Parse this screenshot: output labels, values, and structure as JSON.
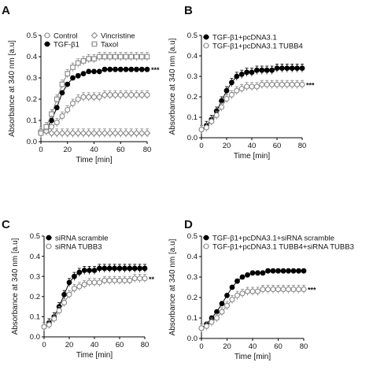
{
  "chart_data": [
    {
      "type": "scatter",
      "panel": "A",
      "xlabel": "Time [min]",
      "ylabel": "Absorbance at 340 nm [a.u]",
      "xlim": [
        0,
        80
      ],
      "ylim": [
        0,
        0.5
      ],
      "xticks": [
        "0",
        "20",
        "40",
        "60",
        "80"
      ],
      "yticks": [
        "0.0",
        "0.1",
        "0.2",
        "0.3",
        "0.4",
        "0.5"
      ],
      "legend_position": "top-left, two columns",
      "significance": "***",
      "x": [
        0,
        4,
        8,
        12,
        16,
        20,
        24,
        28,
        32,
        36,
        40,
        44,
        48,
        52,
        56,
        60,
        64,
        68,
        72,
        76,
        80
      ],
      "series": [
        {
          "name": "Control",
          "marker": "open-circle",
          "color": "#888888",
          "values": [
            0.04,
            0.05,
            0.07,
            0.09,
            0.12,
            0.15,
            0.18,
            0.2,
            0.21,
            0.21,
            0.21,
            0.21,
            0.22,
            0.22,
            0.22,
            0.22,
            0.22,
            0.22,
            0.22,
            0.22,
            0.22
          ],
          "error": 0.02
        },
        {
          "name": "TGF-β1",
          "marker": "filled-circle",
          "color": "#000000",
          "values": [
            0.04,
            0.06,
            0.1,
            0.16,
            0.23,
            0.27,
            0.3,
            0.31,
            0.32,
            0.33,
            0.33,
            0.33,
            0.34,
            0.34,
            0.34,
            0.34,
            0.34,
            0.34,
            0.34,
            0.34,
            0.34
          ],
          "error": 0.01
        },
        {
          "name": "Vincristine",
          "marker": "open-diamond",
          "color": "#888888",
          "values": [
            0.05,
            0.05,
            0.04,
            0.04,
            0.04,
            0.04,
            0.04,
            0.04,
            0.04,
            0.04,
            0.04,
            0.04,
            0.04,
            0.04,
            0.04,
            0.04,
            0.04,
            0.04,
            0.04,
            0.04,
            0.04
          ],
          "error": 0.02
        },
        {
          "name": "Taxol",
          "marker": "open-square",
          "color": "#888888",
          "values": [
            0.04,
            0.07,
            0.13,
            0.2,
            0.27,
            0.32,
            0.35,
            0.37,
            0.38,
            0.39,
            0.39,
            0.4,
            0.4,
            0.4,
            0.4,
            0.4,
            0.4,
            0.4,
            0.4,
            0.4,
            0.4
          ],
          "error": 0.02
        }
      ]
    },
    {
      "type": "scatter",
      "panel": "B",
      "xlabel": "Time [min]",
      "ylabel": "Absorbance at 340 nm [a.u]",
      "xlim": [
        0,
        80
      ],
      "ylim": [
        0,
        0.5
      ],
      "xticks": [
        "0",
        "20",
        "40",
        "60",
        "80"
      ],
      "yticks": [
        "0.0",
        "0.1",
        "0.2",
        "0.3",
        "0.4",
        "0.5"
      ],
      "legend_position": "top-left",
      "significance": "***",
      "x": [
        0,
        4,
        8,
        12,
        16,
        20,
        24,
        28,
        32,
        36,
        40,
        44,
        48,
        52,
        56,
        60,
        64,
        68,
        72,
        76,
        80
      ],
      "series": [
        {
          "name": "TGF-β1+pcDNA3.1",
          "marker": "filled-circle",
          "color": "#000000",
          "values": [
            0.04,
            0.06,
            0.09,
            0.13,
            0.18,
            0.23,
            0.27,
            0.3,
            0.31,
            0.32,
            0.32,
            0.33,
            0.33,
            0.33,
            0.33,
            0.34,
            0.34,
            0.34,
            0.34,
            0.34,
            0.34
          ],
          "error": 0.02
        },
        {
          "name": "TGF-β1+pcDNA3.1 TUBB4",
          "marker": "open-circle",
          "color": "#888888",
          "values": [
            0.04,
            0.05,
            0.08,
            0.11,
            0.15,
            0.19,
            0.21,
            0.23,
            0.24,
            0.25,
            0.25,
            0.25,
            0.26,
            0.26,
            0.26,
            0.26,
            0.26,
            0.26,
            0.26,
            0.26,
            0.26
          ],
          "error": 0.02
        }
      ]
    },
    {
      "type": "scatter",
      "panel": "C",
      "xlabel": "Time [min]",
      "ylabel": "Absorbance at 340 nm [a.u]",
      "xlim": [
        0,
        80
      ],
      "ylim": [
        0,
        0.5
      ],
      "xticks": [
        "0",
        "20",
        "40",
        "60",
        "80"
      ],
      "yticks": [
        "0.0",
        "0.1",
        "0.2",
        "0.3",
        "0.4",
        "0.5"
      ],
      "legend_position": "top-left",
      "significance": "**",
      "x": [
        0,
        4,
        8,
        12,
        16,
        20,
        24,
        28,
        32,
        36,
        40,
        44,
        48,
        52,
        56,
        60,
        64,
        68,
        72,
        76,
        80
      ],
      "series": [
        {
          "name": "siRNA scramble",
          "marker": "filled-circle",
          "color": "#000000",
          "values": [
            0.05,
            0.07,
            0.1,
            0.15,
            0.21,
            0.27,
            0.3,
            0.32,
            0.33,
            0.33,
            0.33,
            0.34,
            0.34,
            0.34,
            0.34,
            0.34,
            0.34,
            0.34,
            0.34,
            0.34,
            0.34
          ],
          "error": 0.02
        },
        {
          "name": "siRNA TUBB3",
          "marker": "open-circle",
          "color": "#888888",
          "values": [
            0.05,
            0.06,
            0.09,
            0.13,
            0.17,
            0.21,
            0.24,
            0.25,
            0.26,
            0.27,
            0.27,
            0.27,
            0.28,
            0.28,
            0.28,
            0.28,
            0.28,
            0.28,
            0.29,
            0.29,
            0.29
          ],
          "error": 0.02
        }
      ]
    },
    {
      "type": "scatter",
      "panel": "D",
      "xlabel": "Time [min]",
      "ylabel": "Absorbance at 340 nm [a.u]",
      "xlim": [
        0,
        80
      ],
      "ylim": [
        0,
        0.5
      ],
      "xticks": [
        "0",
        "20",
        "40",
        "60",
        "80"
      ],
      "yticks": [
        "0.0",
        "0.1",
        "0.2",
        "0.3",
        "0.4",
        "0.5"
      ],
      "legend_position": "top-left",
      "significance": "***",
      "x": [
        0,
        4,
        8,
        12,
        16,
        20,
        24,
        28,
        32,
        36,
        40,
        44,
        48,
        52,
        56,
        60,
        64,
        68,
        72,
        76,
        80
      ],
      "series": [
        {
          "name": "TGF-β1+pcDNA3.1+siRNA scramble",
          "marker": "filled-circle",
          "color": "#000000",
          "values": [
            0.05,
            0.07,
            0.1,
            0.13,
            0.17,
            0.21,
            0.25,
            0.28,
            0.3,
            0.31,
            0.32,
            0.32,
            0.32,
            0.33,
            0.33,
            0.33,
            0.33,
            0.33,
            0.33,
            0.33,
            0.33
          ],
          "error": 0.01
        },
        {
          "name": "TGF-β1+pcDNA3.1 TUBB4+siRNA TUBB3",
          "marker": "open-circle",
          "color": "#888888",
          "values": [
            0.05,
            0.06,
            0.08,
            0.1,
            0.13,
            0.16,
            0.19,
            0.21,
            0.22,
            0.23,
            0.23,
            0.23,
            0.24,
            0.24,
            0.24,
            0.24,
            0.24,
            0.24,
            0.24,
            0.24,
            0.24
          ],
          "error": 0.02
        }
      ]
    }
  ]
}
